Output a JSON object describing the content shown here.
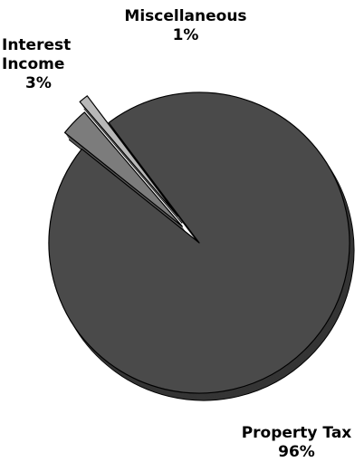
{
  "chart_data": {
    "type": "pie",
    "title": "",
    "slices": [
      {
        "label": "Property Tax",
        "value": 96,
        "value_label": "96%",
        "color": "#4a4a4a",
        "exploded": false
      },
      {
        "label": "Interest Income",
        "value": 3,
        "value_label": "3%",
        "color": "#7c7c7c",
        "exploded": true
      },
      {
        "label": "Miscellaneous",
        "value": 1,
        "value_label": "1%",
        "color": "#b8b8b8",
        "exploded": true
      }
    ],
    "style": "3d-exploded",
    "legend": "none"
  },
  "labels": {
    "misc_name": "Miscellaneous",
    "misc_pct": "1%",
    "interest_name_line1": "Interest",
    "interest_name_line2": "Income",
    "interest_pct": "3%",
    "property_name": "Property Tax",
    "property_pct": "96%"
  }
}
